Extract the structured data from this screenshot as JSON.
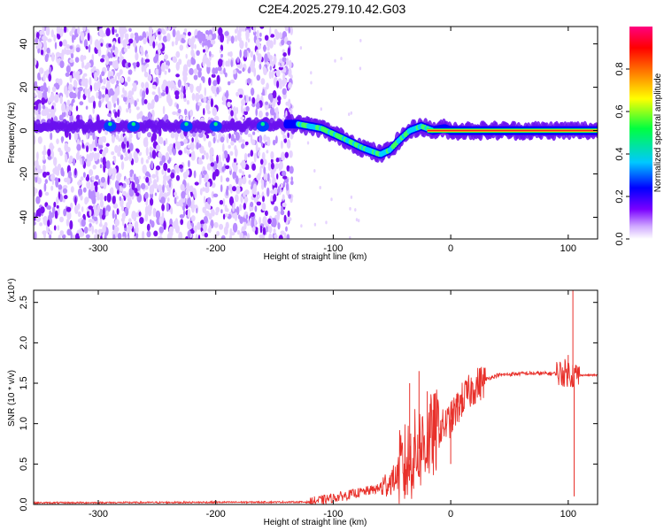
{
  "title": "C2E4.2025.279.10.42.G03",
  "chart_data": [
    {
      "type": "heatmap",
      "name": "spectrogram",
      "xlabel": "Height of straight line (km)",
      "ylabel": "Frequency (Hz)",
      "xlim": [
        -355,
        125
      ],
      "ylim": [
        -50,
        48
      ],
      "xticks": [
        "-300",
        "-200",
        "-100",
        "0",
        "100"
      ],
      "xtick_values": [
        -300,
        -200,
        -100,
        0,
        100
      ],
      "yticks": [
        "-40",
        "-20",
        "0",
        "20",
        "40"
      ],
      "ytick_values": [
        -40,
        -20,
        0,
        20,
        40
      ],
      "colorbar": {
        "label": "Normalized spectral amplitude",
        "range": [
          0,
          1
        ],
        "ticks": [
          "0.0",
          "0.2",
          "0.4",
          "0.6",
          "0.8"
        ],
        "tick_values": [
          0.0,
          0.2,
          0.4,
          0.6,
          0.8
        ],
        "colormap": [
          "#ffffff",
          "#7a00ff",
          "#0000ff",
          "#00c8ff",
          "#00ff40",
          "#ffff00",
          "#ff8000",
          "#ff0000",
          "#ff0080"
        ]
      },
      "ridge": {
        "x": [
          -300,
          -250,
          -200,
          -160,
          -130,
          -110,
          -90,
          -75,
          -60,
          -52,
          -45,
          -35,
          -25,
          -15,
          -5,
          0,
          50,
          100,
          125
        ],
        "y": [
          2,
          2,
          2,
          3,
          3,
          1,
          -4,
          -8,
          -11,
          -9,
          -5,
          0,
          2,
          0,
          1,
          0,
          0,
          0,
          0
        ]
      },
      "noise_extent_x": [
        -355,
        -135
      ]
    },
    {
      "type": "line",
      "name": "snr",
      "xlabel": "Height of straight line (km)",
      "ylabel": "SNR (10 * v/v)",
      "multiplier": "(x10⁴)",
      "xlim": [
        -355,
        125
      ],
      "ylim": [
        0,
        2.65
      ],
      "xticks": [
        "-300",
        "-200",
        "-100",
        "0",
        "100"
      ],
      "xtick_values": [
        -300,
        -200,
        -100,
        0,
        100
      ],
      "yticks": [
        "0.0",
        "0.5",
        "1.0",
        "1.5",
        "2.0",
        "2.5"
      ],
      "ytick_values": [
        0.0,
        0.5,
        1.0,
        1.5,
        2.0,
        2.5
      ],
      "color": "#e8302a",
      "trend": {
        "x": [
          -355,
          -120,
          -100,
          -60,
          -45,
          -30,
          -15,
          0,
          10,
          20,
          30,
          40,
          60,
          90,
          100,
          105,
          110,
          125
        ],
        "y": [
          0.02,
          0.03,
          0.08,
          0.2,
          0.35,
          0.65,
          0.85,
          1.05,
          1.3,
          1.45,
          1.55,
          1.6,
          1.62,
          1.62,
          1.63,
          1.6,
          1.6,
          1.6
        ]
      },
      "peaks": {
        "x": [
          -45,
          -35,
          -27,
          -20,
          -10,
          0,
          100,
          104,
          105
        ],
        "y": [
          0.4,
          1.5,
          1.65,
          1.4,
          0.95,
          0.5,
          1.85,
          2.65,
          0.1
        ]
      }
    }
  ]
}
